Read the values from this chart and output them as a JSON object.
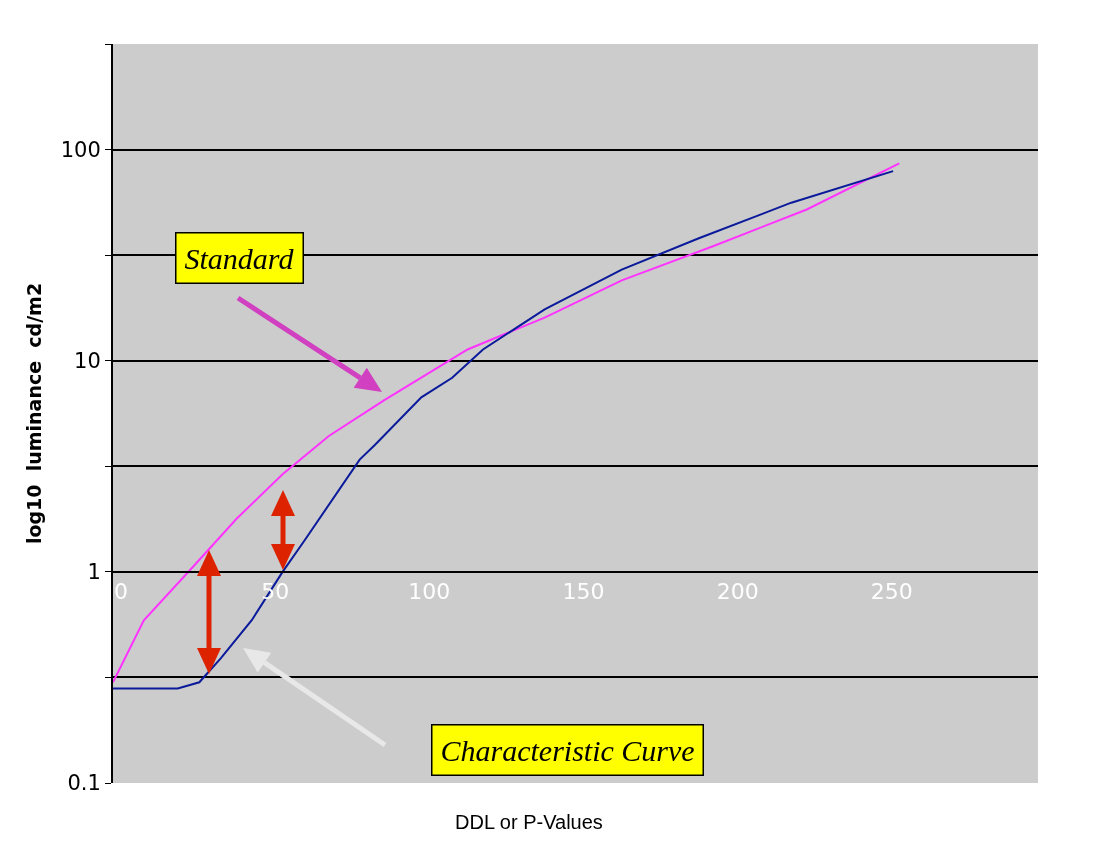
{
  "chart_data": {
    "type": "line",
    "xlabel": "DDL or P-Values",
    "ylabel": "log10  luminance  cd/m2",
    "log": "y",
    "grid": "y",
    "marker": "none",
    "line_style": "solid",
    "xlim": [
      0,
      300
    ],
    "xticks": [
      0,
      50,
      100,
      150,
      200,
      250
    ],
    "ylim": [
      0.1,
      316
    ],
    "yticks": [
      0.1,
      {
        "value": 0.316,
        "label": null
      },
      1,
      {
        "value": 3.16,
        "label": null
      },
      10,
      {
        "value": 31.6,
        "label": null
      },
      100,
      {
        "value": 316,
        "label": null
      }
    ],
    "series": [
      {
        "color": "#ff33ff",
        "x": [
          0,
          10,
          25,
          40,
          55,
          70,
          88,
          115,
          140,
          165,
          195,
          225,
          255
        ],
        "values": [
          0.3,
          0.59,
          1.02,
          1.78,
          2.9,
          4.4,
          6.5,
          11.3,
          16,
          24,
          35,
          52,
          86
        ]
      },
      {
        "color": "#0a1a9a",
        "x": [
          0,
          21,
          28,
          35,
          45,
          55,
          62,
          80,
          85,
          100,
          110,
          120,
          140,
          165,
          190,
          220,
          253
        ],
        "values": [
          0.28,
          0.28,
          0.3,
          0.39,
          0.59,
          1.0,
          1.4,
          3.4,
          4.0,
          6.7,
          8.3,
          11.3,
          17.5,
          27,
          38,
          56,
          79
        ]
      }
    ],
    "annotations": [
      "Standard",
      "Characteristic Curve"
    ]
  }
}
